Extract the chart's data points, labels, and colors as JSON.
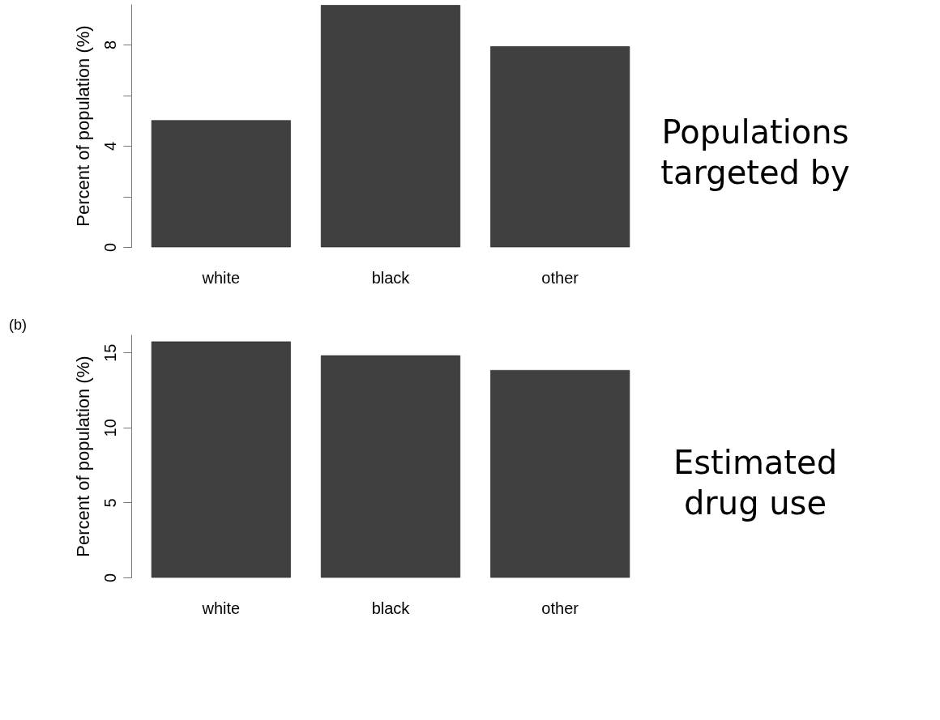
{
  "chart_data": [
    {
      "type": "bar",
      "ylabel": "Percent of population (%)",
      "categories": [
        "white",
        "black",
        "other"
      ],
      "series": [
        {
          "color": "#404040",
          "values": [
            5.0,
            9.55,
            7.92
          ]
        }
      ],
      "ylim": [
        0,
        9.6
      ],
      "yticks": [
        0,
        {
          "value": 2,
          "label": null
        },
        4,
        {
          "value": 6,
          "label": null
        },
        8
      ],
      "grid": false,
      "annotations": [
        "Populations targeted by"
      ]
    },
    {
      "type": "bar",
      "title": "(b)",
      "ylabel": "Percent of population (%)",
      "categories": [
        "white",
        "black",
        "other"
      ],
      "series": [
        {
          "color": "#404040",
          "values": [
            15.72,
            14.79,
            13.81
          ]
        }
      ],
      "ylim": [
        0,
        16.2
      ],
      "yticks": [
        0,
        5,
        10,
        15
      ],
      "grid": false,
      "annotations": [
        "Estimated drug use"
      ]
    }
  ]
}
